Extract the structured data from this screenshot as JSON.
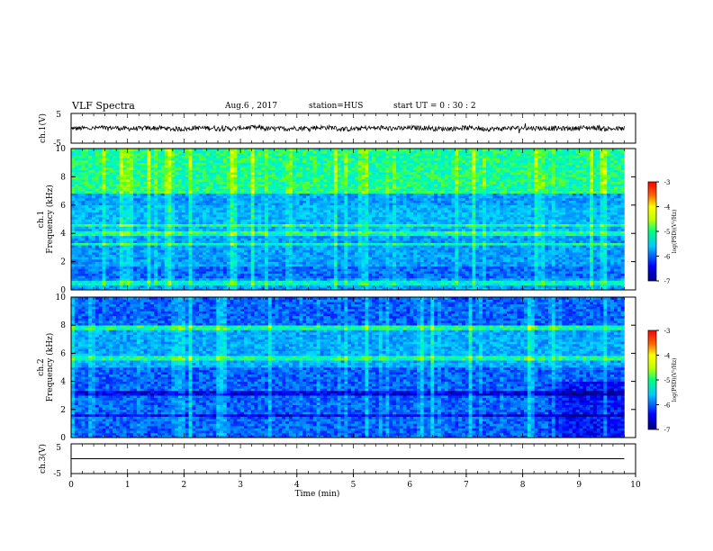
{
  "header": {
    "title": "VLF Spectra",
    "date": "Aug.6 , 2017",
    "station": "station=HUS",
    "start": "start UT = 0 : 30 : 2"
  },
  "chart_data": [
    {
      "type": "line",
      "panel": "ch1-waveform",
      "ylabel": "ch.1(V)",
      "ylim": [
        -5,
        5
      ],
      "yticks": [
        "5",
        "-5"
      ],
      "xlim": [
        0,
        10
      ],
      "y": [
        0.0,
        0.4,
        -0.3,
        0.2,
        -0.5,
        0.3,
        -0.2,
        0.5,
        -0.4,
        0.1,
        0.6,
        -0.6,
        0.2,
        -0.1,
        0.4,
        -0.3,
        0.3,
        -0.5,
        0.2,
        0.1,
        -0.2,
        0.5,
        -0.4,
        0.0
      ],
      "data_extent_x": 9.8
    },
    {
      "type": "heatmap",
      "panel": "ch1-spectrogram",
      "ylabel": "ch.1\nFrequency (kHz)",
      "xlim": [
        0,
        10
      ],
      "ylim": [
        0,
        10
      ],
      "yticks": [
        "0",
        "2",
        "4",
        "6",
        "8",
        "10"
      ],
      "data_extent_x": 9.8,
      "colorbar": {
        "label": "log(PSD)(V²/Hz)",
        "range": [
          -7,
          -3
        ],
        "ticks": [
          "-3",
          "-4",
          "-5",
          "-6",
          "-7"
        ]
      }
    },
    {
      "type": "heatmap",
      "panel": "ch2-spectrogram",
      "ylabel": "ch.2\nFrequency (kHz)",
      "xlim": [
        0,
        10
      ],
      "ylim": [
        0,
        10
      ],
      "yticks": [
        "0",
        "2",
        "4",
        "6",
        "8",
        "10"
      ],
      "data_extent_x": 9.8,
      "colorbar": {
        "label": "log(PSD)(V²/Hz)",
        "range": [
          -7,
          -3
        ],
        "ticks": [
          "-3",
          "-4",
          "-5",
          "-6",
          "-7"
        ]
      }
    },
    {
      "type": "line",
      "panel": "ch3-waveform",
      "ylabel": "ch.3(V)",
      "ylim": [
        -5,
        5
      ],
      "yticks": [
        "5",
        "-5"
      ],
      "xlim": [
        0,
        10
      ],
      "y": [
        0,
        0
      ],
      "data_extent_x": 9.8,
      "xlabel": "Time (min)",
      "xticks": [
        "0",
        "1",
        "2",
        "3",
        "4",
        "5",
        "6",
        "7",
        "8",
        "9",
        "10"
      ]
    }
  ],
  "colors": {
    "spectrum_low": "#00007f",
    "spectrum_mid": "#00c8ff",
    "spectrum_high": "#7fff00",
    "axis": "#000000"
  }
}
